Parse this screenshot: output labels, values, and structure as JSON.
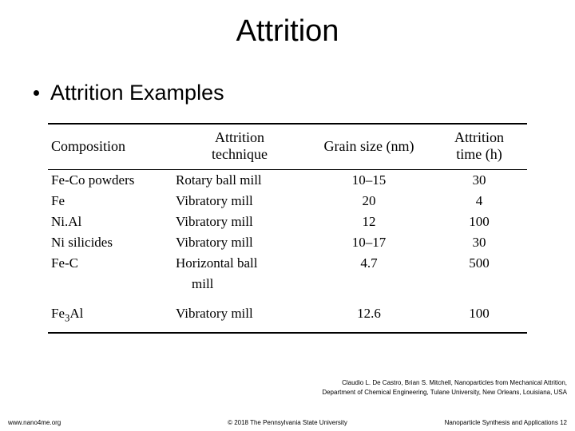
{
  "title": "Attrition",
  "bullet": "Attrition Examples",
  "table": {
    "headers": {
      "composition": "Composition",
      "technique_line1": "Attrition",
      "technique_line2": "technique",
      "grain": "Grain size (nm)",
      "time_line1": "Attrition",
      "time_line2": "time (h)"
    },
    "rows": [
      {
        "comp": "Fe-Co powders",
        "tech": "Rotary ball mill",
        "tech2": "",
        "grain": "10–15",
        "time": "30"
      },
      {
        "comp": "Fe",
        "tech": "Vibratory mill",
        "tech2": "",
        "grain": "20",
        "time": "4"
      },
      {
        "comp": "Ni.Al",
        "tech": "Vibratory mill",
        "tech2": "",
        "grain": "12",
        "time": "100"
      },
      {
        "comp": "Ni silicides",
        "tech": "Vibratory mill",
        "tech2": "",
        "grain": "10–17",
        "time": "30"
      },
      {
        "comp": "Fe-C",
        "tech": "Horizontal ball",
        "tech2": "mill",
        "grain": "4.7",
        "time": "500"
      },
      {
        "comp": "Fe₃Al",
        "tech": "Vibratory mill",
        "tech2": "",
        "grain": "12.6",
        "time": "100"
      }
    ]
  },
  "citation": {
    "line1": "Claudio L. De Castro, Brian S. Mitchell, Nanoparticles from Mechanical Attrition,",
    "line2": "Department of Chemical Engineering, Tulane University, New Orleans, Louisiana, USA"
  },
  "footer": {
    "left": "www.nano4me.org",
    "center": "© 2018 The Pennsylvania State University",
    "right": "Nanoparticle Synthesis and Applications 12"
  }
}
